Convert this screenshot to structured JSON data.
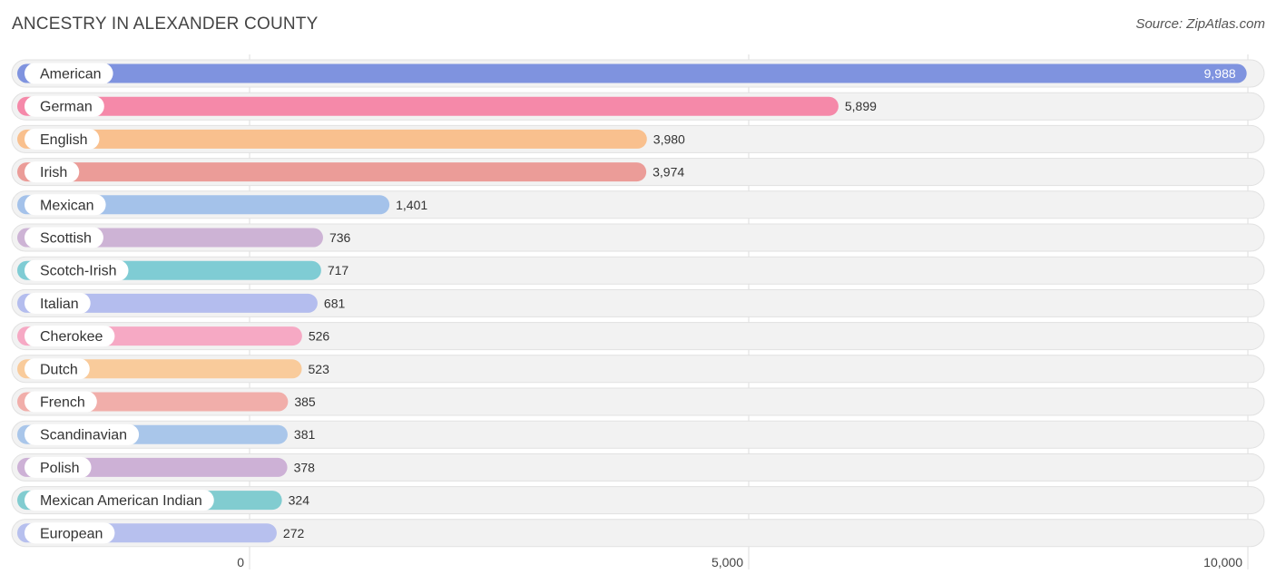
{
  "chart_data": {
    "type": "bar",
    "orientation": "horizontal",
    "title": "ANCESTRY IN ALEXANDER COUNTY",
    "source": "Source: ZipAtlas.com",
    "xlabel": "",
    "ylabel": "",
    "xlim": [
      0,
      10000
    ],
    "ticks": [
      {
        "value": 0,
        "label": "0"
      },
      {
        "value": 5000,
        "label": "5,000"
      },
      {
        "value": 10000,
        "label": "10,000"
      }
    ],
    "categories": [
      "American",
      "German",
      "English",
      "Irish",
      "Mexican",
      "Scottish",
      "Scotch-Irish",
      "Italian",
      "Cherokee",
      "Dutch",
      "French",
      "Scandinavian",
      "Polish",
      "Mexican American Indian",
      "European"
    ],
    "values": [
      9988,
      5899,
      3980,
      3974,
      1401,
      736,
      717,
      681,
      526,
      523,
      385,
      381,
      378,
      324,
      272
    ],
    "value_labels": [
      "9,988",
      "5,899",
      "3,980",
      "3,974",
      "1,401",
      "736",
      "717",
      "681",
      "526",
      "523",
      "385",
      "381",
      "378",
      "324",
      "272"
    ],
    "colors": [
      "#7f93df",
      "#f589a9",
      "#f9c08e",
      "#eb9c98",
      "#a4c2ea",
      "#cdb3d5",
      "#7fccd4",
      "#b4bdee",
      "#f6a9c4",
      "#f9cb9b",
      "#f1aeaa",
      "#a9c6ea",
      "#cdb1d6",
      "#81ccd0",
      "#b7c0ee"
    ]
  }
}
